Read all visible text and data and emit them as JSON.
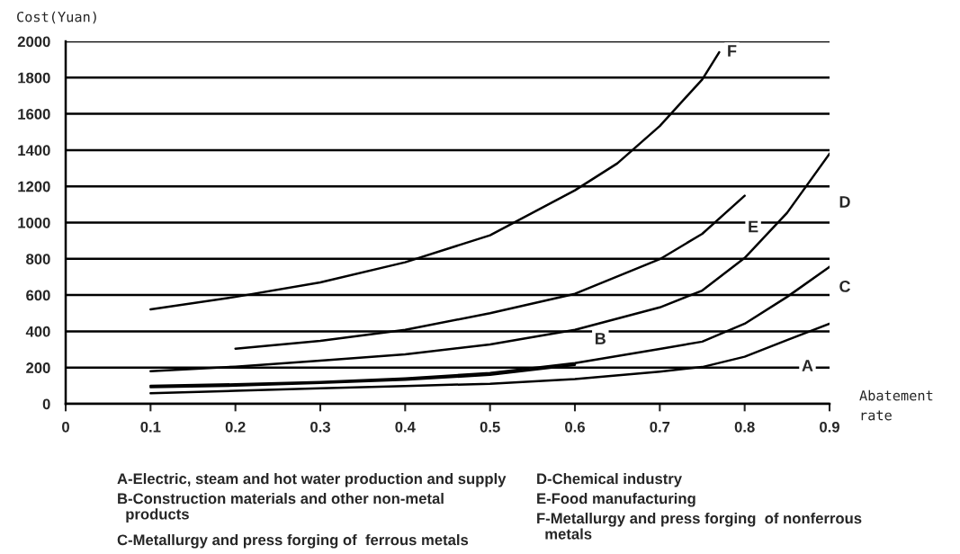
{
  "chart_data": {
    "type": "line",
    "xlabel": "Abatement\nrate",
    "ylabel": "Cost(Yuan)",
    "xlim": [
      0,
      0.9
    ],
    "xticks": [
      {
        "value": 0,
        "label": "0"
      },
      0.1,
      0.2,
      0.3,
      0.4,
      0.5,
      0.6,
      0.7,
      0.8,
      0.9
    ],
    "ylim": [
      0,
      2000
    ],
    "yticks": [
      0,
      200,
      400,
      600,
      800,
      1000,
      1200,
      1400,
      1600,
      1800,
      2000
    ],
    "grid": "y",
    "line_style": "solid",
    "marker": "none",
    "series": [
      {
        "color": "#000000",
        "x": [
          0.1,
          0.2,
          0.3,
          0.4,
          0.5,
          0.6,
          0.7,
          0.75,
          0.8,
          0.85,
          0.9
        ],
        "values": [
          58,
          72,
          86,
          98,
          111,
          136,
          178,
          203,
          260,
          352,
          442
        ]
      },
      {
        "color": "#000000",
        "x": [
          0.1,
          0.2,
          0.3,
          0.4,
          0.5,
          0.6
        ],
        "values": [
          92,
          100,
          115,
          133,
          160,
          215
        ]
      },
      {
        "color": "#000000",
        "x": [
          0.1,
          0.2,
          0.3,
          0.4,
          0.5,
          0.6,
          0.7,
          0.75,
          0.8,
          0.85,
          0.9
        ],
        "values": [
          99,
          108,
          120,
          140,
          170,
          225,
          303,
          343,
          442,
          590,
          756
        ]
      },
      {
        "color": "#000000",
        "x": [
          0.1,
          0.2,
          0.3,
          0.4,
          0.5,
          0.6,
          0.7,
          0.75,
          0.8,
          0.85,
          0.9
        ],
        "values": [
          180,
          205,
          238,
          273,
          328,
          408,
          532,
          625,
          805,
          1054,
          1380
        ]
      },
      {
        "color": "#000000",
        "x": [
          0.2,
          0.3,
          0.4,
          0.5,
          0.6,
          0.7,
          0.75,
          0.8
        ],
        "values": [
          304,
          347,
          408,
          500,
          607,
          798,
          938,
          1148
        ]
      },
      {
        "color": "#000000",
        "x": [
          0.1,
          0.2,
          0.3,
          0.4,
          0.5,
          0.6,
          0.65,
          0.7,
          0.75,
          0.77
        ],
        "values": [
          521,
          590,
          670,
          781,
          930,
          1178,
          1327,
          1533,
          1790,
          1940
        ]
      }
    ],
    "annotations": [
      {
        "text": "A",
        "x": 0.874,
        "y": 203
      },
      {
        "text": "B",
        "x": 0.63,
        "y": 352
      },
      "C",
      "D",
      {
        "text": "E",
        "x": 0.81,
        "y": 970
      },
      {
        "text": "F",
        "x": 0.785,
        "y": 1940
      },
      "A-Electric, steam and hot water production and supply",
      "B-Construction materials and other non-metal\n  products",
      "C-Metallurgy and press forging of  ferrous metals",
      "D-Chemical industry",
      "E-Food manufacturing",
      "F-Metallurgy and press forging  of nonferrous\n  metals"
    ]
  }
}
